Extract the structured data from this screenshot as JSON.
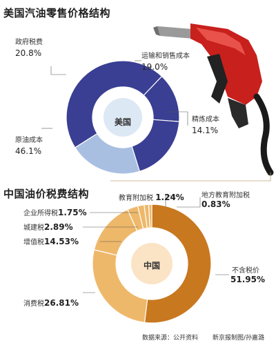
{
  "us_chart": {
    "title": "美国汽油零售价格结构",
    "center_label": "美国",
    "chart_data": {
      "type": "pie",
      "title": "美国汽油零售价格结构",
      "categories": [
        "原油成本",
        "精炼成本",
        "运输和销售成本",
        "政府税费"
      ],
      "values": [
        46.1,
        14.1,
        19.0,
        20.8
      ],
      "unit": "%",
      "value_labels": [
        "46.1%",
        "14.1%",
        "19.0%",
        "20.8%"
      ],
      "colors": [
        "#3a3f93",
        "#3a3f93",
        "#3a3f93",
        "#a9bfe2"
      ]
    }
  },
  "cn_chart": {
    "title": "中国油价税费结构",
    "center_label": "中国",
    "chart_data": {
      "type": "pie",
      "title": "中国油价税费结构",
      "categories": [
        "不含税价",
        "消费税",
        "增值税",
        "城建税",
        "企业所得税",
        "教育附加税",
        "地方教育附加税"
      ],
      "values": [
        51.95,
        26.81,
        14.53,
        2.89,
        1.75,
        1.24,
        0.83
      ],
      "unit": "%",
      "value_labels": [
        "51.95%",
        "26.81%",
        "14.53%",
        "2.89%",
        "1.75%",
        "1.24%",
        "0.83%"
      ],
      "colors": [
        "#c8781f",
        "#eeb86a",
        "#eeb86a",
        "#eeb86a",
        "#eeb86a",
        "#eeb86a",
        "#eeb86a"
      ]
    }
  },
  "footer": {
    "source": "数据来源：公开资料",
    "credit": "新京报制图/孙嘉潞"
  },
  "colors": {
    "us_dark": "#3a3f93",
    "us_light": "#a9bfe2",
    "us_center": "#dde8f5",
    "cn_dark": "#c8781f",
    "cn_light": "#eeb86a",
    "cn_center": "#fbe3c6",
    "nozzle_red": "#c8201c",
    "hose": "#1a1a1a"
  }
}
